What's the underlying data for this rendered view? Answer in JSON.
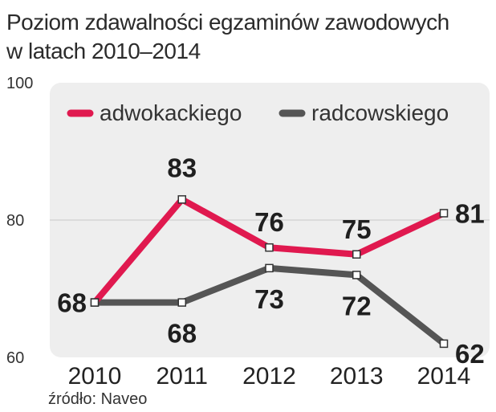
{
  "title_lines": [
    "Poziom zdawalności egzaminów zawodowych",
    "w latach 2010–2014"
  ],
  "source": "źródło: Naveo",
  "chart_data": {
    "type": "line",
    "title": "Poziom zdawalności egzaminów zawodowych w latach 2010–2014",
    "x": [
      "2010",
      "2011",
      "2012",
      "2013",
      "2014"
    ],
    "ylim": [
      60,
      100
    ],
    "yticks": [
      60,
      80,
      100
    ],
    "grid": true,
    "legend_position": "top",
    "series": [
      {
        "name": "adwokackiego",
        "color": "#e0194f",
        "values": [
          68,
          83,
          76,
          75,
          81
        ],
        "labels": [
          "",
          "83",
          "76",
          "75",
          "81"
        ]
      },
      {
        "name": "radcowskiego",
        "color": "#555555",
        "values": [
          68,
          68,
          73,
          72,
          62
        ],
        "labels": [
          "68",
          "68",
          "73",
          "72",
          "62"
        ]
      }
    ]
  }
}
